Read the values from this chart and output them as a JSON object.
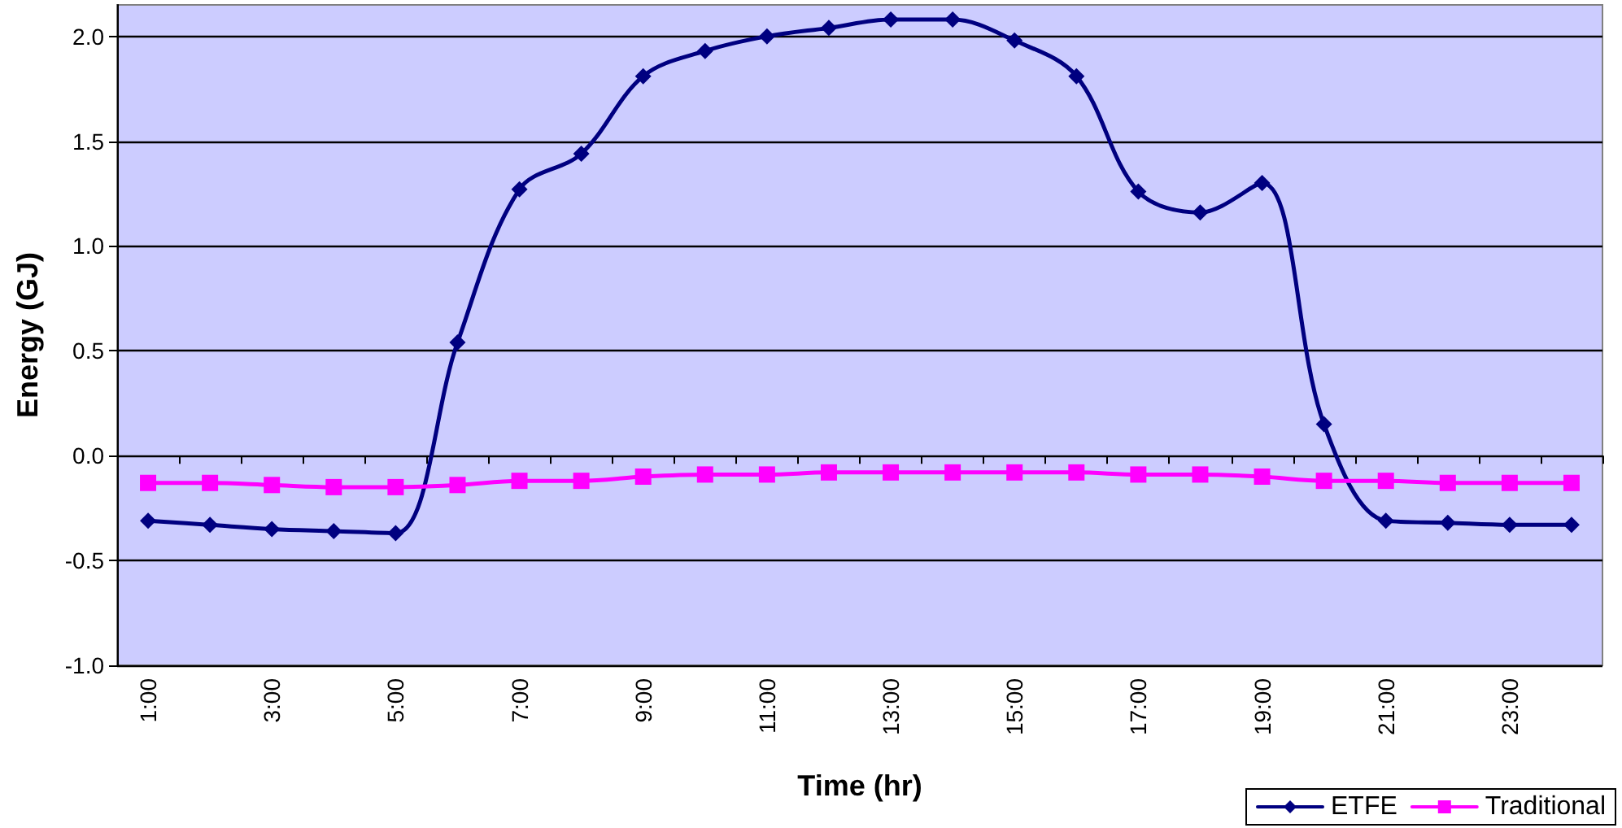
{
  "chart_data": {
    "type": "line",
    "xlabel": "Time (hr)",
    "ylabel": "Energy (GJ)",
    "categories": [
      "1:00",
      null,
      "3:00",
      null,
      "5:00",
      null,
      "7:00",
      null,
      "9:00",
      null,
      "11:00",
      null,
      "13:00",
      null,
      "15:00",
      null,
      "17:00",
      null,
      "19:00",
      null,
      "21:00",
      null,
      "23:00",
      null
    ],
    "series": [
      {
        "name": "ETFE",
        "color": "#000080",
        "marker": "diamond",
        "values": [
          -0.31,
          -0.33,
          -0.35,
          -0.36,
          -0.37,
          0.54,
          1.27,
          1.44,
          1.81,
          1.93,
          2.0,
          2.04,
          2.08,
          2.08,
          1.98,
          1.81,
          1.26,
          1.16,
          1.3,
          0.15,
          -0.31,
          -0.32,
          -0.33,
          -0.33
        ]
      },
      {
        "name": "Traditional",
        "color": "#ff00ff",
        "marker": "square",
        "values": [
          -0.13,
          -0.13,
          -0.14,
          -0.15,
          -0.15,
          -0.14,
          -0.12,
          -0.12,
          -0.1,
          -0.09,
          -0.09,
          -0.08,
          -0.08,
          -0.08,
          -0.08,
          -0.08,
          -0.09,
          -0.09,
          -0.1,
          -0.12,
          -0.12,
          -0.13,
          -0.13,
          -0.13
        ]
      }
    ],
    "ylim": [
      -1.0,
      2.15
    ],
    "yticks": [
      {
        "value": -1,
        "label": "-1.0"
      },
      -0.5,
      {
        "value": 0,
        "label": "0.0"
      },
      0.5,
      {
        "value": 1,
        "label": "1.0"
      },
      1.5,
      {
        "value": 2,
        "label": "2.0"
      }
    ],
    "grid": "y",
    "legend": "bottom right",
    "line_style": "solid"
  }
}
